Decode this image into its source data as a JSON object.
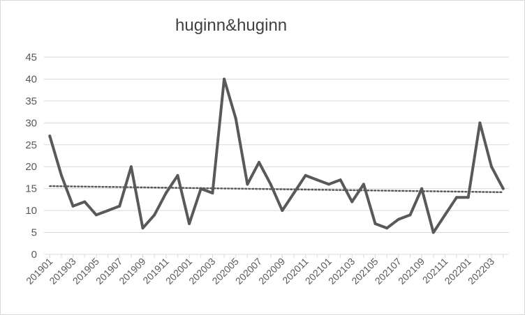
{
  "chart_data": {
    "type": "line",
    "title": "huginn&huginn",
    "xlabel": "",
    "ylabel": "",
    "ylim": [
      0,
      45
    ],
    "yticks": [
      "0",
      "5",
      "10",
      "15",
      "20",
      "25",
      "30",
      "35",
      "40",
      "45"
    ],
    "x": [
      "201901",
      "201902",
      "201903",
      "201904",
      "201905",
      "201906",
      "201907",
      "201908",
      "201909",
      "201910",
      "201911",
      "201912",
      "202001",
      "202002",
      "202003",
      "202004",
      "202005",
      "202006",
      "202007",
      "202008",
      "202009",
      "202010",
      "202011",
      "202012",
      "202101",
      "202102",
      "202103",
      "202104",
      "202105",
      "202106",
      "202107",
      "202108",
      "202109",
      "202110",
      "202111",
      "202112",
      "202201",
      "202202",
      "202203",
      "202204"
    ],
    "xtick_labels": [
      "201901",
      "201903",
      "201905",
      "201907",
      "201909",
      "201911",
      "202001",
      "202003",
      "202005",
      "202007",
      "202009",
      "202011",
      "202101",
      "202103",
      "202105",
      "202107",
      "202109",
      "202111",
      "202201",
      "202203"
    ],
    "series": [
      {
        "values": [
          27,
          18,
          11,
          12,
          9,
          10,
          11,
          20,
          6,
          9,
          14,
          18,
          7,
          15,
          14,
          40,
          31,
          16,
          21,
          16,
          10,
          14,
          18,
          17,
          16,
          17,
          12,
          16,
          7,
          6,
          8,
          9,
          15,
          5,
          9,
          13,
          13,
          30,
          20,
          15
        ],
        "color": "#595959"
      }
    ],
    "trendline": {
      "type": "linear",
      "style": "dotted",
      "color": "#595959"
    },
    "grid": true,
    "gridColor": "#d9d9d9",
    "legend": "none"
  }
}
